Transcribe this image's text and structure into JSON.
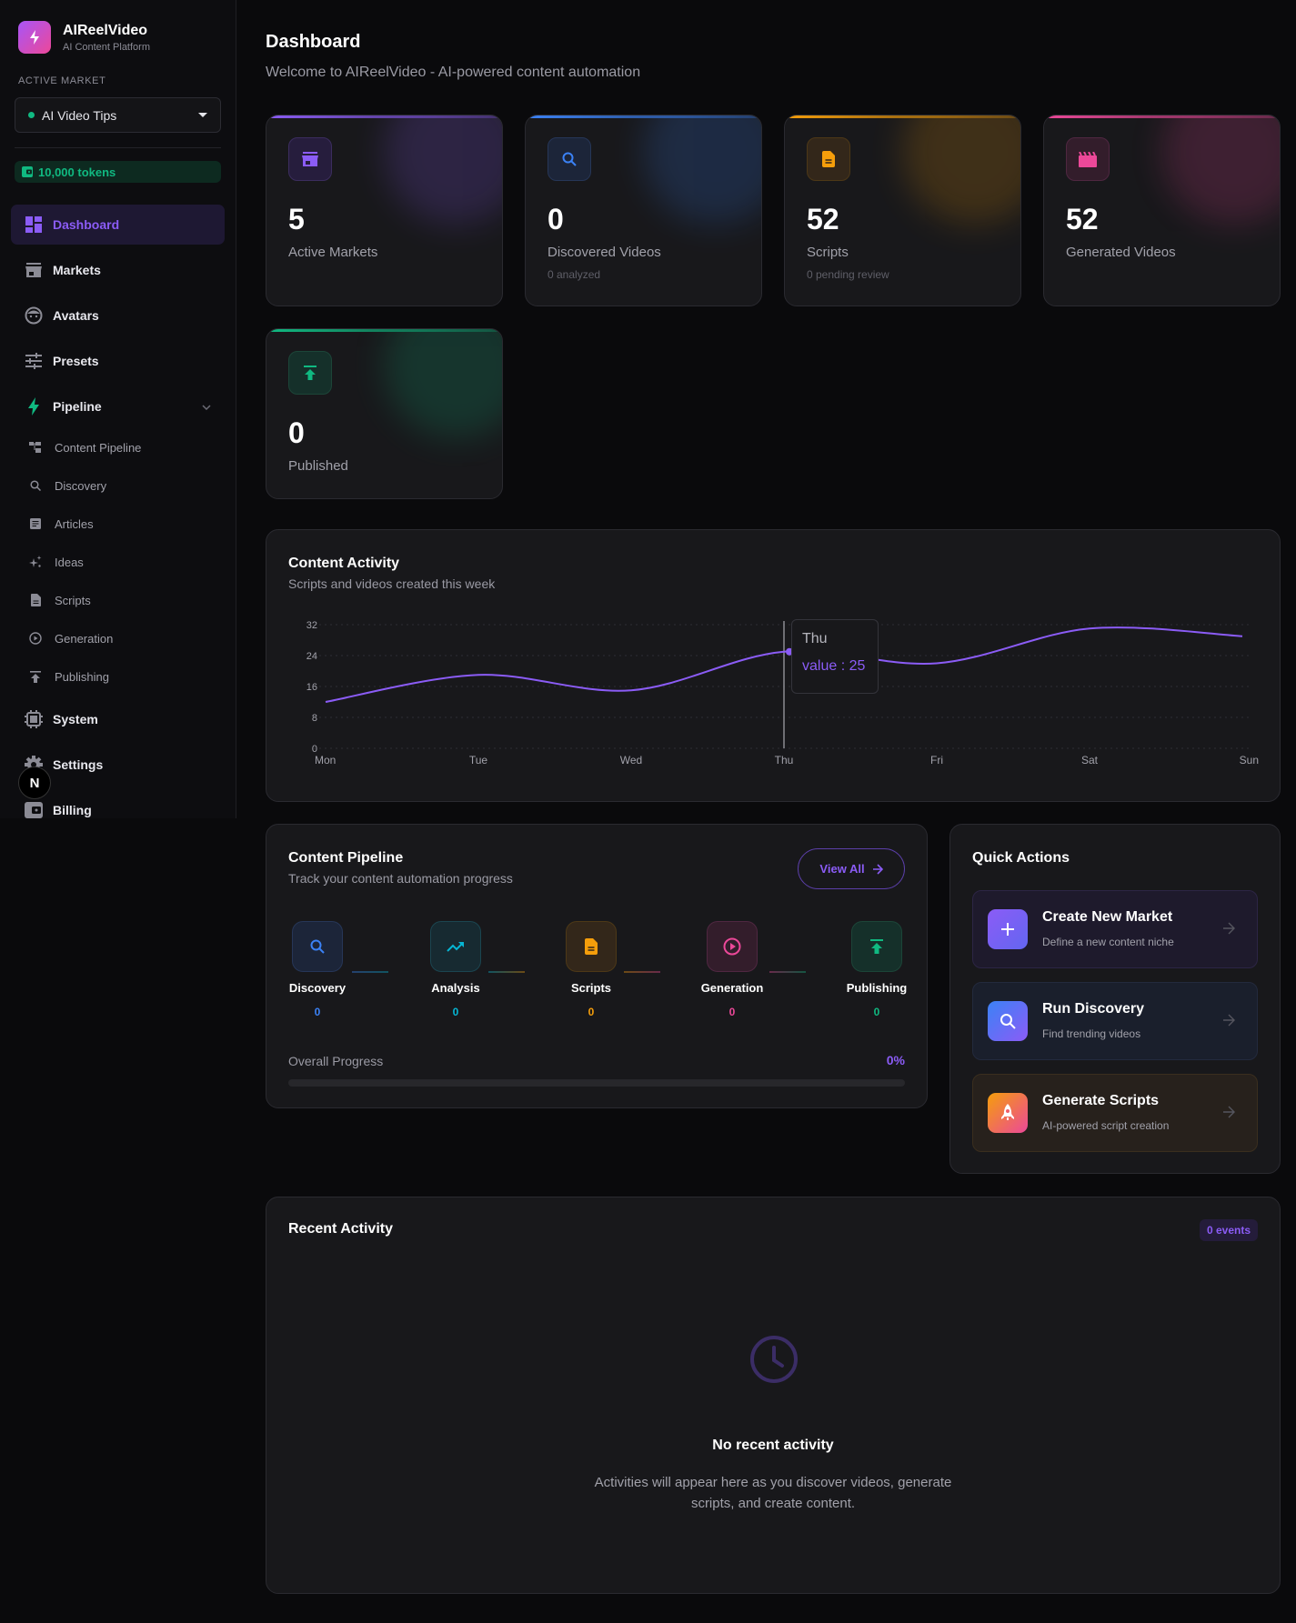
{
  "sidebar": {
    "brand": {
      "name": "AIReelVideo",
      "tagline": "AI Content Platform"
    },
    "active_market_label": "ACTIVE MARKET",
    "active_market": {
      "name": "AI Video Tips",
      "status_color": "#10b981"
    },
    "tokens": "10,000 tokens",
    "nav": [
      {
        "label": "Dashboard",
        "icon": "dashboard-icon",
        "active": true
      },
      {
        "label": "Markets",
        "icon": "storefront-icon"
      },
      {
        "label": "Avatars",
        "icon": "face-icon"
      },
      {
        "label": "Presets",
        "icon": "sliders-icon"
      },
      {
        "label": "Pipeline",
        "icon": "bolt-icon",
        "expanded": true
      }
    ],
    "pipeline_items": [
      {
        "label": "Content Pipeline",
        "icon": "flow-icon"
      },
      {
        "label": "Discovery",
        "icon": "search-icon"
      },
      {
        "label": "Articles",
        "icon": "article-icon"
      },
      {
        "label": "Ideas",
        "icon": "sparkle-icon"
      },
      {
        "label": "Scripts",
        "icon": "document-icon"
      },
      {
        "label": "Generation",
        "icon": "play-circle-icon"
      },
      {
        "label": "Publishing",
        "icon": "upload-icon"
      }
    ],
    "bottom_nav": [
      {
        "label": "System",
        "icon": "chip-icon"
      },
      {
        "label": "Settings",
        "icon": "gear-icon"
      },
      {
        "label": "Billing",
        "icon": "wallet-icon"
      }
    ],
    "dev_badge": "N"
  },
  "header": {
    "title": "Dashboard",
    "subtitle": "Welcome to AIReelVideo - AI-powered content automation"
  },
  "stats": [
    {
      "value": "5",
      "label": "Active Markets",
      "sub": "",
      "color": "#8b5cf6",
      "icon": "storefront-icon"
    },
    {
      "value": "0",
      "label": "Discovered Videos",
      "sub": "0 analyzed",
      "color": "#3b82f6",
      "icon": "search-icon"
    },
    {
      "value": "52",
      "label": "Scripts",
      "sub": "0 pending review",
      "color": "#f59e0b",
      "icon": "document-icon"
    },
    {
      "value": "52",
      "label": "Generated Videos",
      "sub": "",
      "color": "#ec4899",
      "icon": "clapperboard-icon"
    },
    {
      "value": "0",
      "label": "Published",
      "sub": "",
      "color": "#10b981",
      "icon": "upload-icon"
    }
  ],
  "activity": {
    "title": "Content Activity",
    "subtitle": "Scripts and videos created this week",
    "tooltip": {
      "day": "Thu",
      "text": "value : 25"
    }
  },
  "chart_data": {
    "type": "line",
    "title": "Content Activity",
    "subtitle": "Scripts and videos created this week",
    "categories": [
      "Mon",
      "Tue",
      "Wed",
      "Thu",
      "Fri",
      "Sat",
      "Sun"
    ],
    "series": [
      {
        "name": "value",
        "values": [
          12,
          19,
          15,
          25,
          22,
          31,
          29
        ],
        "color": "#8b5cf6"
      }
    ],
    "yticks": [
      0,
      8,
      16,
      24,
      32
    ],
    "ylim": [
      0,
      32
    ],
    "grid": "horizontal dotted",
    "legend": "none",
    "xlabel": "",
    "ylabel": "",
    "active_point": {
      "x": "Thu",
      "value": 25
    }
  },
  "pipeline": {
    "title": "Content Pipeline",
    "subtitle": "Track your content automation progress",
    "view_all": "View All",
    "stages": [
      {
        "name": "Discovery",
        "count": "0",
        "color": "#3b82f6",
        "icon": "search-icon"
      },
      {
        "name": "Analysis",
        "count": "0",
        "color": "#06b6d4",
        "icon": "trending-up-icon"
      },
      {
        "name": "Scripts",
        "count": "0",
        "color": "#f59e0b",
        "icon": "document-icon"
      },
      {
        "name": "Generation",
        "count": "0",
        "color": "#ec4899",
        "icon": "play-circle-icon"
      },
      {
        "name": "Publishing",
        "count": "0",
        "color": "#10b981",
        "icon": "upload-icon"
      }
    ],
    "progress_label": "Overall Progress",
    "progress_value": "0%"
  },
  "quick_actions": {
    "title": "Quick Actions",
    "items": [
      {
        "title": "Create New Market",
        "subtitle": "Define a new content niche",
        "icon": "plus-icon"
      },
      {
        "title": "Run Discovery",
        "subtitle": "Find trending videos",
        "icon": "search-icon"
      },
      {
        "title": "Generate Scripts",
        "subtitle": "AI-powered script creation",
        "icon": "rocket-icon"
      }
    ]
  },
  "recent": {
    "title": "Recent Activity",
    "badge": "0 events",
    "empty_title": "No recent activity",
    "empty_desc_line1": "Activities will appear here as you discover videos, generate",
    "empty_desc_line2": "scripts, and create content."
  }
}
